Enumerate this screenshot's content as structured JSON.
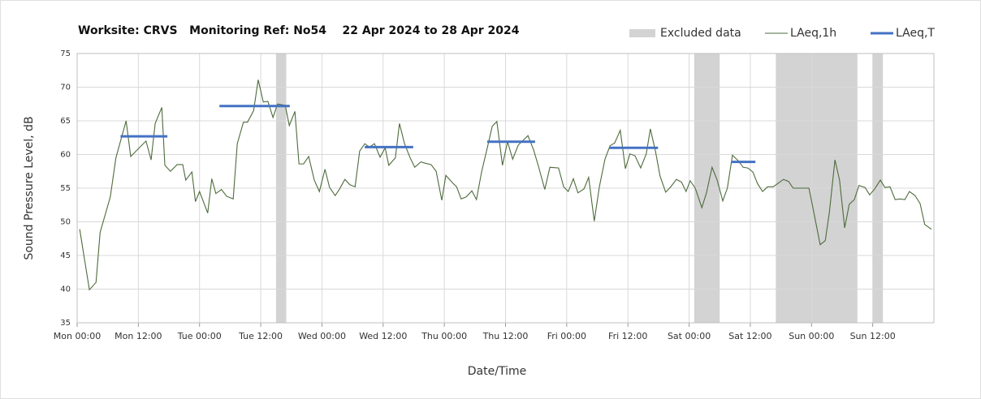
{
  "chart_data": {
    "type": "line",
    "title": "Worksite: CRVS   Monitoring Ref: No54    22 Apr 2024 to 28 Apr 2024",
    "x_label": "Date/Time",
    "y_label": "Sound Pressure Level, dB",
    "xlim": [
      0,
      168
    ],
    "xticks": [
      {
        "value": 0,
        "label": "Mon 00:00"
      },
      {
        "value": 12,
        "label": "Mon 12:00"
      },
      {
        "value": 24,
        "label": "Tue 00:00"
      },
      {
        "value": 36,
        "label": "Tue 12:00"
      },
      {
        "value": 48,
        "label": "Wed 00:00"
      },
      {
        "value": 60,
        "label": "Wed 12:00"
      },
      {
        "value": 72,
        "label": "Thu 00:00"
      },
      {
        "value": 84,
        "label": "Thu 12:00"
      },
      {
        "value": 96,
        "label": "Fri 00:00"
      },
      {
        "value": 108,
        "label": "Fri 12:00"
      },
      {
        "value": 120,
        "label": "Sat 00:00"
      },
      {
        "value": 132,
        "label": "Sat 12:00"
      },
      {
        "value": 144,
        "label": "Sun 00:00"
      },
      {
        "value": 156,
        "label": "Sun 12:00"
      }
    ],
    "ylim": [
      35,
      75
    ],
    "yticks": [
      35,
      40,
      45,
      50,
      55,
      60,
      65,
      70,
      75
    ],
    "grid": true,
    "legend": "top-right",
    "excluded": {
      "name": "Excluded data",
      "color": "#d3d3d3",
      "ranges": [
        [
          39,
          41
        ],
        [
          121,
          126
        ],
        [
          137,
          153
        ],
        [
          156,
          158
        ]
      ]
    },
    "series": [
      {
        "name": "LAeq,1h",
        "color": "#4e6b3c",
        "x": [
          0.5,
          2.4,
          3.7,
          4.5,
          6.5,
          7.6,
          9.6,
          10.5,
          13.5,
          14.5,
          15.3,
          16.6,
          17.2,
          18.3,
          19.6,
          20.7,
          21.3,
          22.5,
          23.2,
          24,
          25.6,
          26.4,
          27.2,
          28.3,
          29.3,
          30.6,
          31.4,
          32.6,
          33.4,
          34.6,
          35.5,
          36.5,
          37.4,
          38.4,
          39.3,
          40.8,
          41.6,
          42.7,
          43.5,
          44.4,
          45.4,
          46.5,
          47.5,
          48.6,
          49.5,
          50.6,
          51.4,
          52.5,
          53.5,
          54.5,
          55.4,
          56.4,
          57.3,
          58.3,
          59.4,
          60.4,
          61.1,
          62.4,
          63.2,
          64.2,
          65.3,
          66.2,
          67.4,
          68.3,
          69.4,
          70.4,
          71.5,
          72.3,
          73.6,
          74.4,
          75.3,
          76.3,
          77.4,
          78.3,
          79.3,
          80.4,
          81.4,
          82.3,
          83.4,
          84.4,
          85.4,
          86.5,
          88.4,
          89.5,
          90.4,
          91.7,
          92.7,
          94.4,
          95.4,
          96.3,
          97.3,
          98.2,
          99.4,
          100.3,
          101.4,
          102.4,
          103.5,
          104.5,
          105.4,
          106.5,
          107.5,
          108.4,
          109.4,
          110.5,
          111.6,
          112.4,
          113.4,
          114.3,
          115.4,
          116.4,
          117.5,
          118.5,
          119.4,
          120.2,
          121.2,
          122.5,
          123.4,
          124.5,
          125.5,
          126.6,
          127.5,
          128.5,
          129.6,
          130.6,
          131.5,
          132.5,
          133.4,
          134.4,
          135.4,
          136.5,
          137.6,
          138.5,
          139.5,
          140.4,
          143.5,
          144.4,
          145.7,
          146.7,
          147.5,
          148.6,
          149.5,
          150.5,
          151.4,
          152.4,
          153.3,
          154.5,
          155.4,
          156.4,
          157.5,
          158.4,
          159.4,
          160.4,
          161.3,
          162.3,
          163.2,
          164.3,
          165.3,
          166.2,
          167.5
        ],
        "values": [
          48.9,
          39.9,
          41,
          48.4,
          53.7,
          59.5,
          65,
          59.7,
          62,
          59.2,
          64.6,
          67,
          58.4,
          57.5,
          58.5,
          58.5,
          56.2,
          57.4,
          53,
          54.5,
          51.3,
          56.4,
          54.2,
          54.8,
          53.8,
          53.4,
          61.6,
          64.8,
          64.8,
          66.5,
          71.1,
          67.8,
          67.9,
          65.5,
          67.5,
          67.3,
          64.3,
          66.4,
          58.6,
          58.6,
          59.7,
          56.2,
          54.5,
          57.8,
          55.1,
          53.9,
          54.8,
          56.3,
          55.5,
          55.2,
          60.5,
          61.6,
          61.1,
          61.6,
          59.6,
          61,
          58.4,
          59.5,
          64.6,
          61.6,
          59.5,
          58.1,
          58.9,
          58.7,
          58.5,
          57.5,
          53.2,
          56.9,
          55.8,
          55.2,
          53.4,
          53.7,
          54.6,
          53.3,
          57.4,
          60.9,
          64.2,
          64.9,
          58.4,
          61.9,
          59.3,
          61.4,
          62.8,
          60.7,
          58.4,
          54.8,
          58.1,
          58,
          55.2,
          54.5,
          56.4,
          54.3,
          54.9,
          56.6,
          50.1,
          55.2,
          59.3,
          61.3,
          61.7,
          63.6,
          57.9,
          60.1,
          59.8,
          58,
          60.1,
          63.8,
          60.5,
          56.8,
          54.4,
          55.2,
          56.3,
          55.9,
          54.5,
          56.1,
          55,
          52.1,
          54.3,
          58.1,
          56.2,
          53.1,
          55,
          59.9,
          59.1,
          58.1,
          58,
          57.4,
          55.7,
          54.5,
          55.2,
          55.2,
          55.8,
          56.3,
          56,
          55,
          55,
          51.6,
          46.6,
          47.2,
          51.4,
          59.2,
          56.2,
          49.1,
          52.6,
          53.3,
          55.4,
          55.1,
          54,
          54.9,
          56.2,
          55.1,
          55.2,
          53.3,
          53.4,
          53.3,
          54.5,
          53.9,
          52.7,
          49.6,
          48.9
        ]
      },
      {
        "name": "LAeq,T",
        "color": "#4472c4",
        "segments": [
          {
            "x": [
              8.5,
              17.7
            ],
            "value": 62.7
          },
          {
            "x": [
              27.9,
              41.7
            ],
            "value": 67.2
          },
          {
            "x": [
              56.4,
              65.9
            ],
            "value": 61.1
          },
          {
            "x": [
              80.4,
              89.8
            ],
            "value": 61.9
          },
          {
            "x": [
              104.3,
              113.9
            ],
            "value": 61
          },
          {
            "x": [
              128.3,
              133
            ],
            "value": 58.9
          }
        ]
      }
    ]
  }
}
